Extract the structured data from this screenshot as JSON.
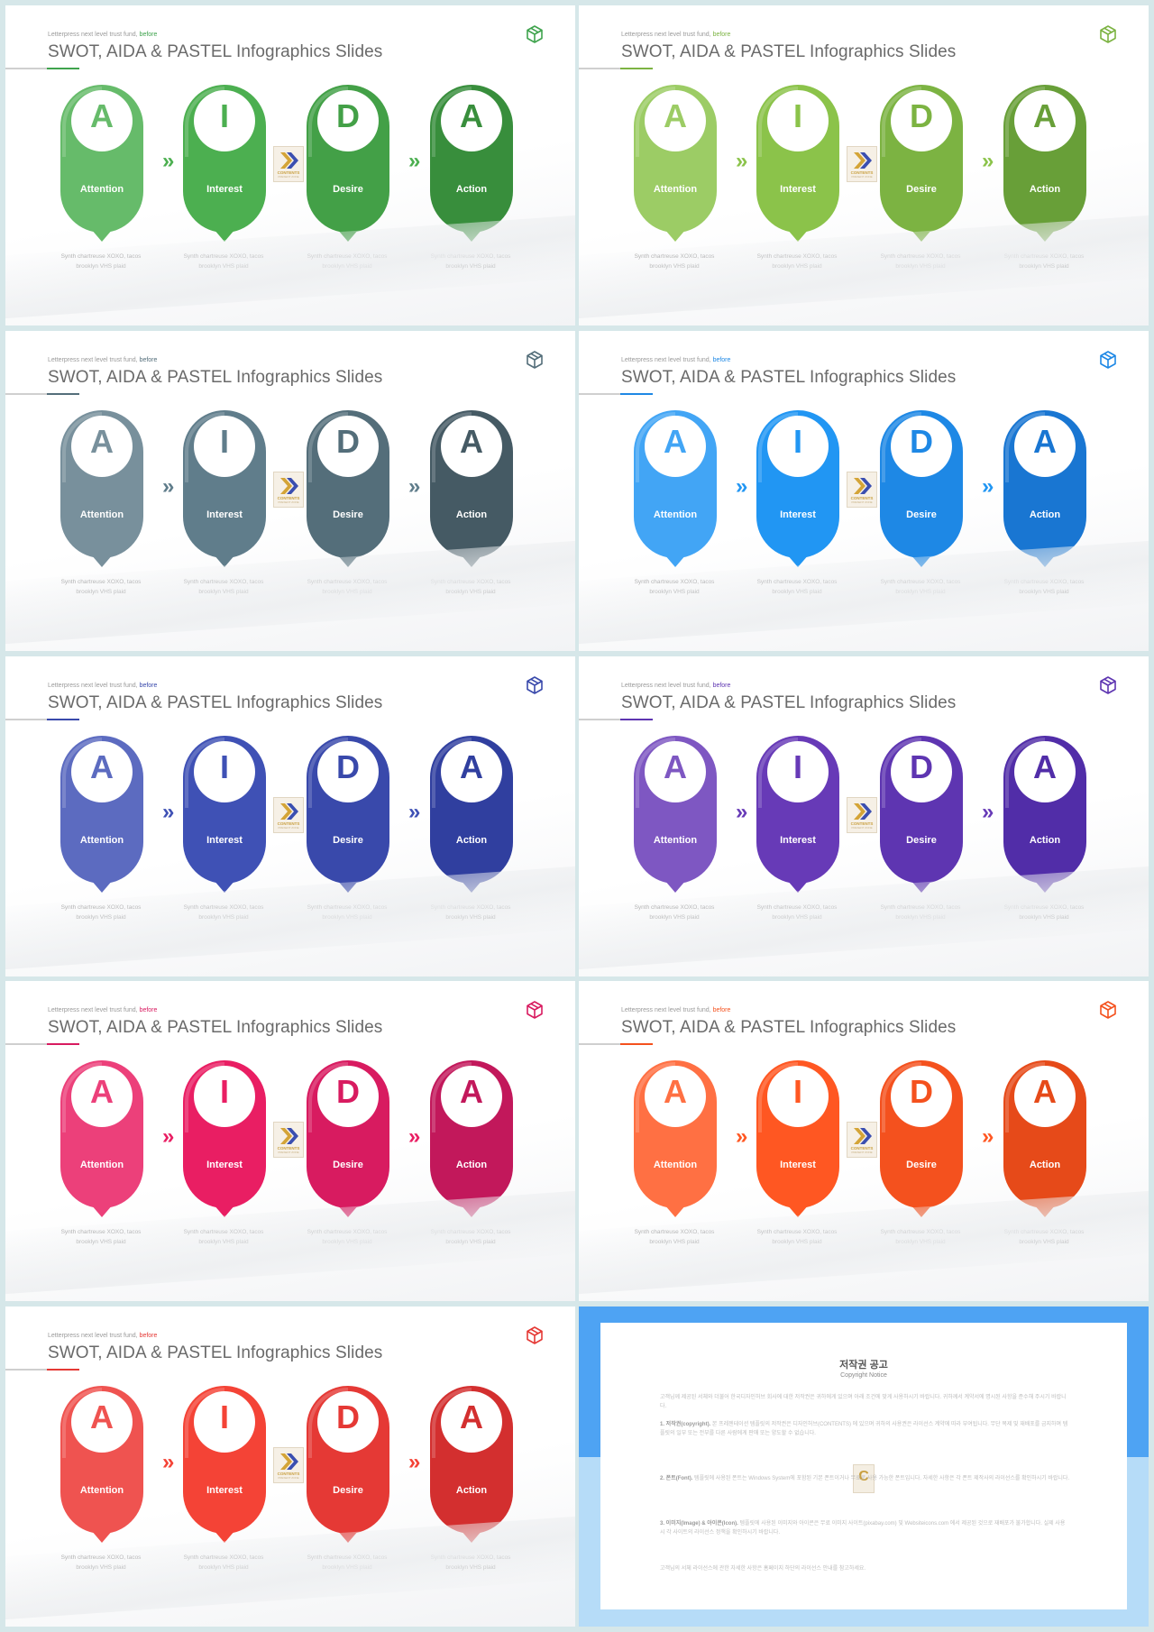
{
  "common": {
    "kicker": "Letterpress next level trust fund,",
    "kicker_accent": "before",
    "title": "SWOT, AIDA & PASTEL Infographics Slides",
    "description": "Synth chartreuse XOXO, tacos brooklyn VHS plaid",
    "steps": [
      {
        "letter": "A",
        "word": "Attention"
      },
      {
        "letter": "I",
        "word": "Interest"
      },
      {
        "letter": "D",
        "word": "Desire"
      },
      {
        "letter": "A",
        "word": "Action"
      }
    ],
    "chevron": "»",
    "badge_text": "CONTENTS",
    "badge_sub": "PRESENT ZONE"
  },
  "slides": [
    {
      "name": "green",
      "accent": "#3fa34d",
      "colors": [
        "#66bb6a",
        "#4caf50",
        "#43a047",
        "#388e3c"
      ]
    },
    {
      "name": "light-green",
      "accent": "#7cb342",
      "colors": [
        "#9ccc65",
        "#8bc34a",
        "#7cb342",
        "#689f38"
      ]
    },
    {
      "name": "blue-grey",
      "accent": "#546e7a",
      "colors": [
        "#78909c",
        "#607d8b",
        "#546e7a",
        "#455a64"
      ]
    },
    {
      "name": "blue",
      "accent": "#1e88e5",
      "colors": [
        "#42a5f5",
        "#2196f3",
        "#1e88e5",
        "#1976d2"
      ]
    },
    {
      "name": "indigo",
      "accent": "#3949ab",
      "colors": [
        "#5c6bc0",
        "#3f51b5",
        "#3949ab",
        "#303f9f"
      ]
    },
    {
      "name": "deep-purple",
      "accent": "#5e35b1",
      "colors": [
        "#7e57c2",
        "#673ab7",
        "#5e35b1",
        "#512da8"
      ]
    },
    {
      "name": "pink",
      "accent": "#d81b60",
      "colors": [
        "#ec407a",
        "#e91e63",
        "#d81b60",
        "#c2185b"
      ]
    },
    {
      "name": "deep-orange",
      "accent": "#f4511e",
      "colors": [
        "#ff7043",
        "#ff5722",
        "#f4511e",
        "#e64a19"
      ]
    },
    {
      "name": "red",
      "accent": "#e53935",
      "colors": [
        "#ef5350",
        "#f44336",
        "#e53935",
        "#d32f2f"
      ]
    }
  ],
  "copyright": {
    "title": "저작권 공고",
    "subtitle": "Copyright Notice",
    "intro": "고객님께 제공된 서체와 더불어 한국디자인허브 회사에 대한 저작권은 귀하에게 있으며 아래 조건에 맞게 사용하시기 바랍니다. 귀하께서 계약서에 명시된 사항을 준수해 주시기 바랍니다.",
    "p1_head": "1. 저작권(copyright).",
    "p1": "본 프레젠테이션 템플릿의 저작권은 디자인허브(CONTENTS) 에 있으며 귀하의 사용권은 라이선스 계약에 따라 부여됩니다. 무단 복제 및 재배포를 금지하며 템플릿의 일부 또는 전부를 다른 사람에게 판매 또는 양도할 수 없습니다.",
    "p2_head": "2. 폰트(Font).",
    "p2": "템플릿에 사용된 폰트는 Windows System에 포함된 기본 폰트이거나 무료로 사용 가능한 폰트입니다. 자세한 사항은 각 폰트 제작사의 라이선스를 확인하시기 바랍니다.",
    "p3_head": "3. 이미지(Image) & 아이콘(Icon).",
    "p3": "템플릿에 사용된 이미지와 아이콘은 무료 이미지 사이트(pixabay.com) 및 Websiteicons.com 에서 제공된 것으로 재배포가 불가합니다. 실제 사용 시 각 사이트의 라이선스 정책을 확인하시기 바랍니다.",
    "outro": "고객님의 서체 라이선스에 관한 자세한 사항은 홈페이지 하단의 라이선스 안내를 참고하세요.",
    "badge": "C"
  }
}
